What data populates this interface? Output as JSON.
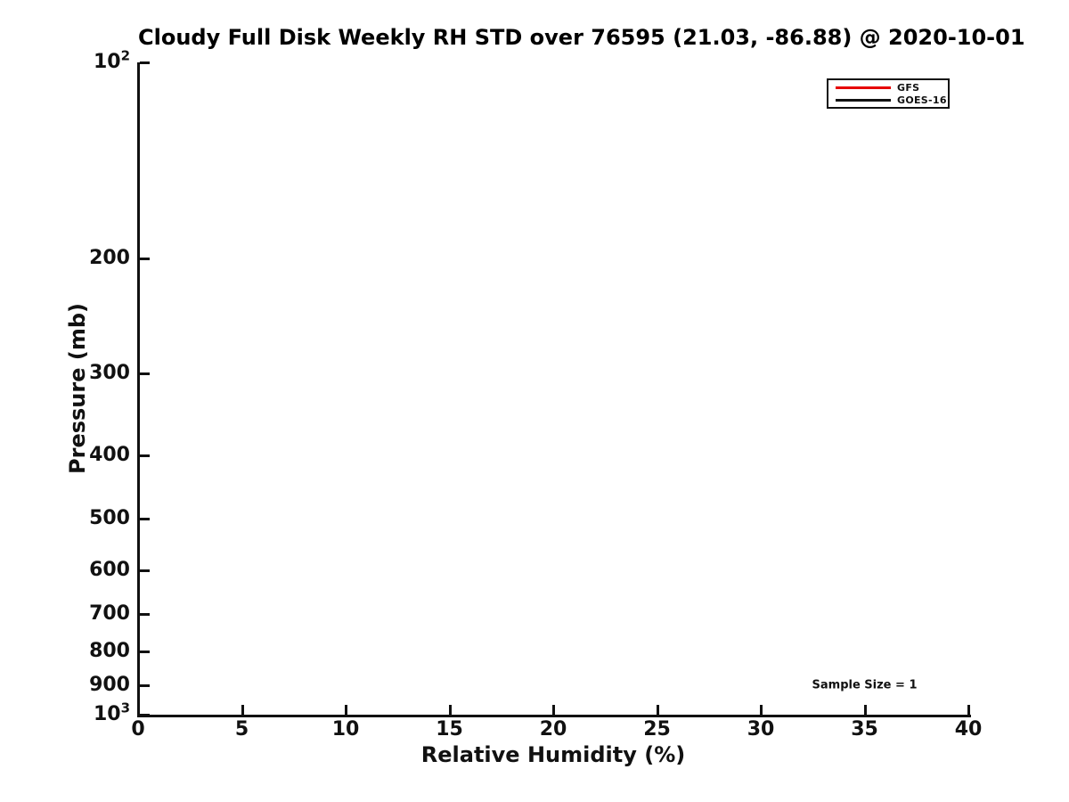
{
  "chart_data": {
    "type": "line",
    "title": "Cloudy Full Disk Weekly RH STD over 76595 (21.03, -86.88) @ 2020-10-01",
    "xlabel": "Relative Humidity (%)",
    "ylabel": "Pressure (mb)",
    "grid": false,
    "plot_area_empty": true,
    "x_axis": {
      "scale": "linear",
      "min": 0,
      "max": 40,
      "ticks": [
        0,
        5,
        10,
        15,
        20,
        25,
        30,
        35,
        40
      ]
    },
    "y_axis": {
      "scale": "log10",
      "min": 100,
      "max": 1000,
      "inverted": true,
      "ticks": [
        {
          "value": 100,
          "base": "10",
          "sup": "2"
        },
        {
          "value": 200,
          "text": "200"
        },
        {
          "value": 300,
          "text": "300"
        },
        {
          "value": 400,
          "text": "400"
        },
        {
          "value": 500,
          "text": "500"
        },
        {
          "value": 600,
          "text": "600"
        },
        {
          "value": 700,
          "text": "700"
        },
        {
          "value": 800,
          "text": "800"
        },
        {
          "value": 900,
          "text": "900"
        },
        {
          "value": 1000,
          "base": "10",
          "sup": "3"
        }
      ]
    },
    "series": [
      {
        "name": "GFS",
        "color": "#e60000",
        "points": []
      },
      {
        "name": "GOES-16",
        "color": "#111111",
        "points": []
      }
    ],
    "legend": {
      "position": "top-right",
      "entries": [
        {
          "label": "GFS",
          "color": "#e60000"
        },
        {
          "label": "GOES-16",
          "color": "#111111"
        }
      ]
    },
    "annotations": [
      {
        "text": "Sample Size = 1",
        "x": 35,
        "y": 900
      }
    ],
    "colors": {
      "axis": "#111111",
      "title_text": "#000000",
      "background": "#ffffff"
    }
  }
}
